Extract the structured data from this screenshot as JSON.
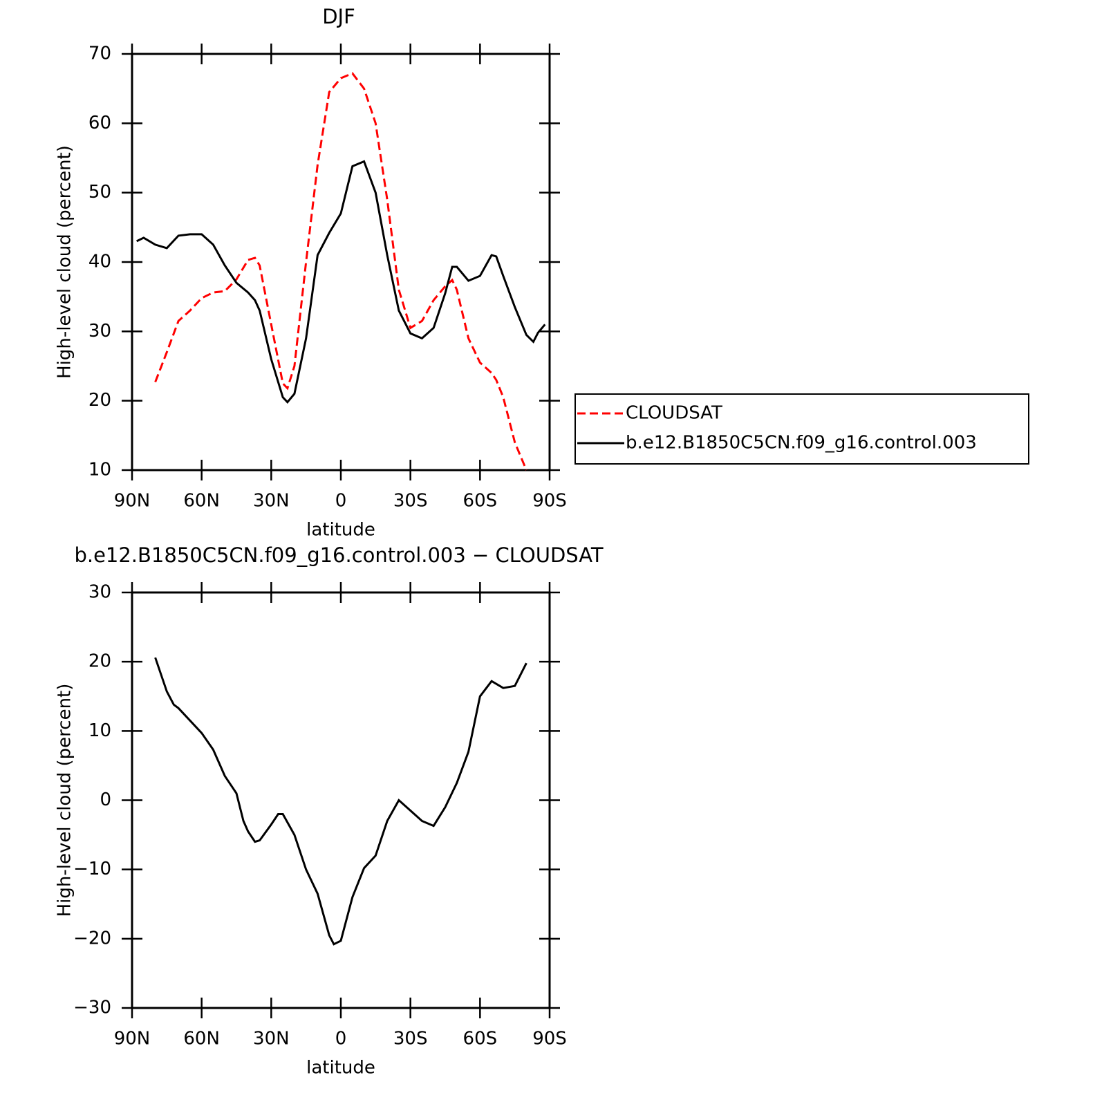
{
  "chart_data": [
    {
      "type": "line",
      "title": "DJF",
      "x_label": "latitude",
      "y_label": "High-level cloud (percent)",
      "x": [
        88,
        85,
        80,
        75,
        70,
        65,
        60,
        55,
        50,
        45,
        40,
        37,
        35,
        30,
        25,
        23,
        20,
        15,
        10,
        5,
        0,
        -5,
        -10,
        -15,
        -20,
        -25,
        -30,
        -35,
        -40,
        -45,
        -48,
        -50,
        -55,
        -60,
        -65,
        -67,
        -70,
        -75,
        -80,
        -83,
        -85,
        -88
      ],
      "series": [
        {
          "name": "CLOUDSAT",
          "color": "#ff0000",
          "dash": true,
          "values": [
            null,
            null,
            22.7,
            27,
            31.5,
            33,
            34.8,
            35.6,
            35.8,
            37.5,
            40.3,
            40.6,
            39.5,
            31,
            22.5,
            21.8,
            25,
            40,
            54,
            64.5,
            66.5,
            67.2,
            65,
            60,
            49,
            36,
            30.5,
            31.5,
            34.5,
            36.5,
            37.4,
            36,
            29,
            25.5,
            24,
            23,
            20.5,
            14,
            10,
            null,
            null,
            null
          ]
        },
        {
          "name": "b.e12.B1850C5CN.f09_g16.control.003",
          "color": "#000000",
          "dash": false,
          "values": [
            43,
            43.5,
            42.5,
            42,
            43.8,
            44,
            44,
            42.5,
            39.5,
            37,
            35.6,
            34.5,
            33,
            26,
            20.5,
            19.8,
            21,
            29,
            41,
            44.2,
            47,
            53.8,
            54.5,
            50,
            41,
            33,
            29.7,
            29,
            30.5,
            35.5,
            39.3,
            39.3,
            37.3,
            38,
            41,
            40.8,
            38,
            33.5,
            29.5,
            28.5,
            29.8,
            31
          ]
        }
      ],
      "xlim": [
        90,
        -90
      ],
      "xticks": [
        {
          "value": 90,
          "label": "90N"
        },
        {
          "value": 60,
          "label": "60N"
        },
        {
          "value": 30,
          "label": "30N"
        },
        0,
        {
          "value": -30,
          "label": "30S"
        },
        {
          "value": -60,
          "label": "60S"
        },
        {
          "value": -90,
          "label": "90S"
        }
      ],
      "ylim": [
        10,
        70
      ],
      "yticks": [
        10,
        20,
        30,
        40,
        50,
        60,
        70
      ],
      "legend": "right"
    },
    {
      "type": "line",
      "title": "b.e12.B1850C5CN.f09_g16.control.003 − CLOUDSAT",
      "x_label": "latitude",
      "y_label": "High-level cloud (percent)",
      "x": [
        80,
        75,
        72,
        70,
        65,
        60,
        55,
        50,
        45,
        42,
        40,
        37,
        35,
        30,
        27,
        25,
        20,
        15,
        10,
        5,
        3,
        0,
        -5,
        -10,
        -15,
        -20,
        -25,
        -30,
        -35,
        -40,
        -45,
        -50,
        -55,
        -60,
        -65,
        -70,
        -75,
        -80
      ],
      "values": [
        20.6,
        15.7,
        13.8,
        13.3,
        11.5,
        9.7,
        7.3,
        3.5,
        1,
        -3,
        -4.5,
        -6,
        -5.8,
        -3.5,
        -2,
        -2,
        -5,
        -10,
        -13.5,
        -19.5,
        -20.8,
        -20.3,
        -14,
        -9.8,
        -8,
        -3,
        0,
        -1.5,
        -3,
        -3.7,
        -1,
        2.5,
        7,
        15,
        17.2,
        16.2,
        16.5,
        19.8
      ],
      "color": "#000000",
      "xlim": [
        90,
        -90
      ],
      "xticks": [
        {
          "value": 90,
          "label": "90N"
        },
        {
          "value": 60,
          "label": "60N"
        },
        {
          "value": 30,
          "label": "30N"
        },
        0,
        {
          "value": -30,
          "label": "30S"
        },
        {
          "value": -60,
          "label": "60S"
        },
        {
          "value": -90,
          "label": "90S"
        }
      ],
      "ylim": [
        -30,
        30
      ],
      "yticks": [
        {
          "value": -30,
          "label": "−30"
        },
        {
          "value": -20,
          "label": "−20"
        },
        {
          "value": -10,
          "label": "−10"
        },
        0,
        10,
        20,
        30
      ]
    }
  ]
}
